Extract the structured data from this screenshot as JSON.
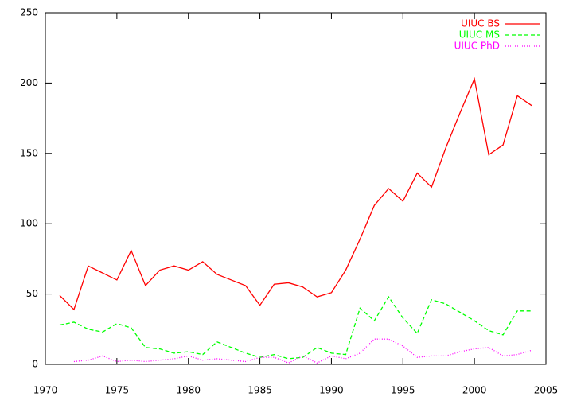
{
  "chart_data": {
    "type": "line",
    "x": [
      1971,
      1972,
      1973,
      1974,
      1975,
      1976,
      1977,
      1978,
      1979,
      1980,
      1981,
      1982,
      1983,
      1984,
      1985,
      1986,
      1987,
      1988,
      1989,
      1990,
      1991,
      1992,
      1993,
      1994,
      1995,
      1996,
      1997,
      1998,
      1999,
      2000,
      2001,
      2002,
      2003,
      2004
    ],
    "series": [
      {
        "name": "UIUC BS",
        "color": "#ff0000",
        "dash": "none",
        "values": [
          49,
          39,
          70,
          65,
          60,
          81,
          56,
          67,
          70,
          67,
          73,
          64,
          60,
          56,
          42,
          57,
          58,
          55,
          48,
          51,
          67,
          89,
          113,
          125,
          116,
          136,
          126,
          154,
          179,
          203,
          149,
          156,
          191,
          184
        ]
      },
      {
        "name": "UIUC MS",
        "color": "#00ff00",
        "dash": "5,3",
        "values": [
          28,
          30,
          25,
          23,
          29,
          26,
          12,
          11,
          8,
          9,
          7,
          16,
          12,
          8,
          5,
          7,
          4,
          5,
          12,
          8,
          7,
          40,
          31,
          48,
          33,
          22,
          46,
          43,
          37,
          31,
          24,
          21,
          38,
          38
        ]
      },
      {
        "name": "UIUC PhD",
        "color": "#ff00ff",
        "dash": "1,2",
        "values": [
          null,
          2,
          3,
          6,
          2,
          3,
          2,
          3,
          4,
          6,
          3,
          4,
          3,
          2,
          5,
          5,
          1,
          6,
          1,
          6,
          4,
          8,
          18,
          18,
          13,
          5,
          6,
          6,
          9,
          11,
          12,
          6,
          7,
          10
        ]
      }
    ],
    "xlim": [
      1970,
      2005
    ],
    "xticks": [
      1970,
      1975,
      1980,
      1985,
      1990,
      1995,
      2000,
      2005
    ],
    "ylim": [
      0,
      250
    ],
    "yticks": [
      0,
      50,
      100,
      150,
      200,
      250
    ],
    "legend": "top-right"
  }
}
